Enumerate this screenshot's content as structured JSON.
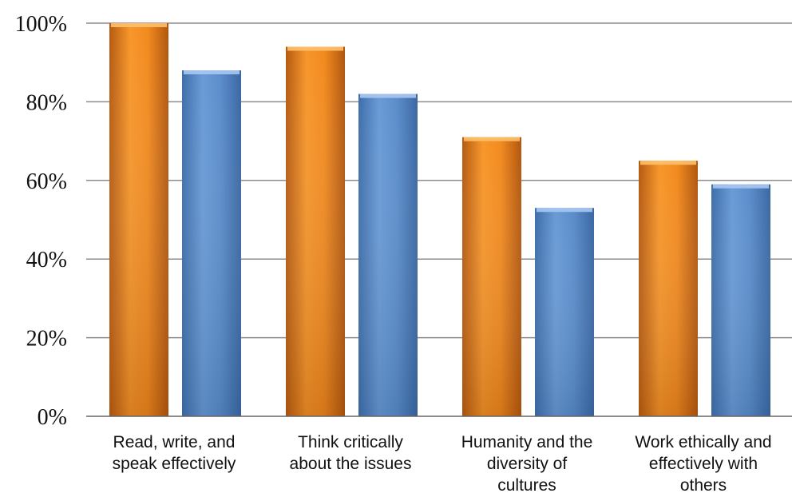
{
  "chart_data": {
    "type": "bar",
    "title": "",
    "xlabel": "",
    "ylabel": "",
    "ylim": [
      0,
      100
    ],
    "yticks": [
      "0%",
      "20%",
      "40%",
      "60%",
      "80%",
      "100%"
    ],
    "grid": true,
    "legend": "none",
    "categories": [
      [
        "Read, write, and",
        "speak effectively"
      ],
      [
        "Think critically",
        "about the issues"
      ],
      [
        "Humanity and the",
        "diversity of",
        "cultures"
      ],
      [
        "Work ethically and",
        "effectively with",
        "others"
      ]
    ],
    "series": [
      {
        "values": [
          100,
          94,
          71,
          65
        ],
        "color": "#F28A1E"
      },
      {
        "values": [
          88,
          82,
          53,
          59
        ],
        "color": "#5B8DCB"
      }
    ]
  }
}
